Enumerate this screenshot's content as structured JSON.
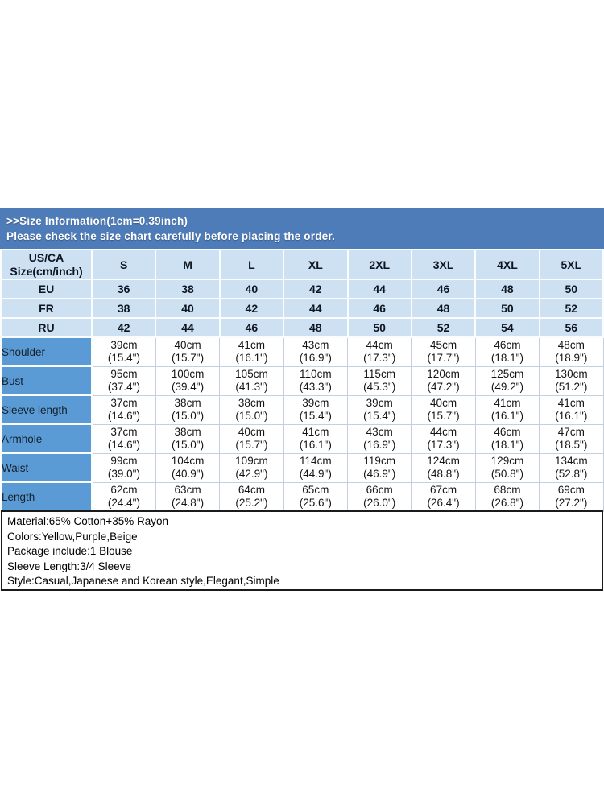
{
  "colors": {
    "banner_bg": "#4e7cb8",
    "light_cell_bg": "#cde1f2",
    "label_cell_bg": "#5b9bd5",
    "banner_text": "#ffffff",
    "info_border": "#1a1a1a"
  },
  "banner": {
    "line1": ">>Size Information(1cm=0.39inch)",
    "line2": "Please check the size chart carefully before placing the order."
  },
  "size_table": {
    "corner_header": "US/CA\nSize(cm/inch)",
    "size_headers": [
      "S",
      "M",
      "L",
      "XL",
      "2XL",
      "3XL",
      "4XL",
      "5XL"
    ],
    "conversion_rows": [
      {
        "label": "EU",
        "values": [
          "36",
          "38",
          "40",
          "42",
          "44",
          "46",
          "48",
          "50"
        ]
      },
      {
        "label": "FR",
        "values": [
          "38",
          "40",
          "42",
          "44",
          "46",
          "48",
          "50",
          "52"
        ]
      },
      {
        "label": "RU",
        "values": [
          "42",
          "44",
          "46",
          "48",
          "50",
          "52",
          "54",
          "56"
        ]
      }
    ],
    "measurement_rows": [
      {
        "label": "Shoulder",
        "cells": [
          [
            "39cm",
            "(15.4\")"
          ],
          [
            "40cm",
            "(15.7\")"
          ],
          [
            "41cm",
            "(16.1\")"
          ],
          [
            "43cm",
            "(16.9\")"
          ],
          [
            "44cm",
            "(17.3\")"
          ],
          [
            "45cm",
            "(17.7\")"
          ],
          [
            "46cm",
            "(18.1\")"
          ],
          [
            "48cm",
            "(18.9\")"
          ]
        ]
      },
      {
        "label": "Bust",
        "cells": [
          [
            "95cm",
            "(37.4\")"
          ],
          [
            "100cm",
            "(39.4\")"
          ],
          [
            "105cm",
            "(41.3\")"
          ],
          [
            "110cm",
            "(43.3\")"
          ],
          [
            "115cm",
            "(45.3\")"
          ],
          [
            "120cm",
            "(47.2\")"
          ],
          [
            "125cm",
            "(49.2\")"
          ],
          [
            "130cm",
            "(51.2\")"
          ]
        ]
      },
      {
        "label": "Sleeve length",
        "cells": [
          [
            "37cm",
            "(14.6\")"
          ],
          [
            "38cm",
            "(15.0\")"
          ],
          [
            "38cm",
            "(15.0\")"
          ],
          [
            "39cm",
            "(15.4\")"
          ],
          [
            "39cm",
            "(15.4\")"
          ],
          [
            "40cm",
            "(15.7\")"
          ],
          [
            "41cm",
            "(16.1\")"
          ],
          [
            "41cm",
            "(16.1\")"
          ]
        ]
      },
      {
        "label": "Armhole",
        "cells": [
          [
            "37cm",
            "(14.6\")"
          ],
          [
            "38cm",
            "(15.0\")"
          ],
          [
            "40cm",
            "(15.7\")"
          ],
          [
            "41cm",
            "(16.1\")"
          ],
          [
            "43cm",
            "(16.9\")"
          ],
          [
            "44cm",
            "(17.3\")"
          ],
          [
            "46cm",
            "(18.1\")"
          ],
          [
            "47cm",
            "(18.5\")"
          ]
        ]
      },
      {
        "label": "Waist",
        "cells": [
          [
            "99cm",
            "(39.0\")"
          ],
          [
            "104cm",
            "(40.9\")"
          ],
          [
            "109cm",
            "(42.9\")"
          ],
          [
            "114cm",
            "(44.9\")"
          ],
          [
            "119cm",
            "(46.9\")"
          ],
          [
            "124cm",
            "(48.8\")"
          ],
          [
            "129cm",
            "(50.8\")"
          ],
          [
            "134cm",
            "(52.8\")"
          ]
        ]
      },
      {
        "label": "Length",
        "cells": [
          [
            "62cm",
            "(24.4\")"
          ],
          [
            "63cm",
            "(24.8\")"
          ],
          [
            "64cm",
            "(25.2\")"
          ],
          [
            "65cm",
            "(25.6\")"
          ],
          [
            "66cm",
            "(26.0\")"
          ],
          [
            "67cm",
            "(26.4\")"
          ],
          [
            "68cm",
            "(26.8\")"
          ],
          [
            "69cm",
            "(27.2\")"
          ]
        ]
      }
    ]
  },
  "info": {
    "lines": [
      "Material:65% Cotton+35% Rayon",
      "Colors:Yellow,Purple,Beige",
      "Package include:1 Blouse",
      "Sleeve Length:3/4 Sleeve",
      "Style:Casual,Japanese and Korean style,Elegant,Simple"
    ]
  }
}
